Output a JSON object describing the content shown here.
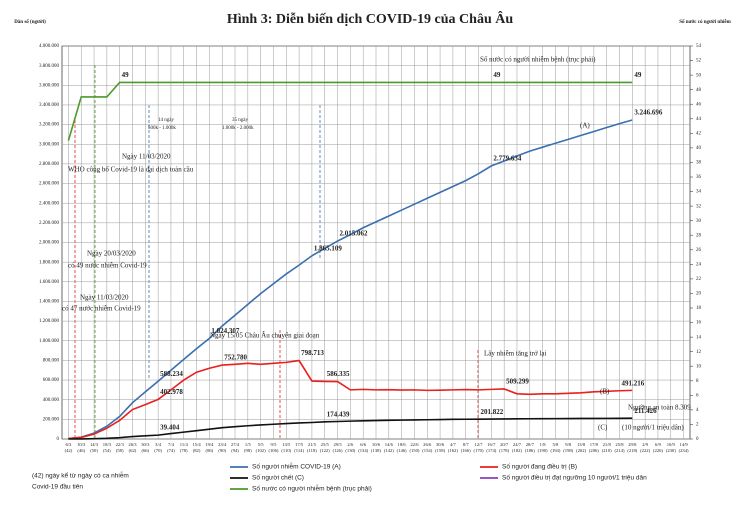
{
  "chart_data": {
    "type": "line",
    "title": "Hình 3: Diễn biến dịch COVID-19 của Châu Âu",
    "y_label": "Dân số (người)",
    "y2_label": "Số nước có người nhiễm",
    "categories": [
      "6/3",
      "10/3",
      "14/3",
      "18/3",
      "22/3",
      "26/3",
      "30/3",
      "3/4",
      "7/4",
      "11/4",
      "15/4",
      "19/4",
      "23/4",
      "27/4",
      "1/5",
      "5/5",
      "9/5",
      "13/5",
      "17/5",
      "21/5",
      "25/5",
      "29/5",
      "2/6",
      "6/6",
      "10/6",
      "14/6",
      "18/6",
      "22/6",
      "26/6",
      "30/6",
      "4/7",
      "8/7",
      "12/7",
      "16/7",
      "20/7",
      "24/7",
      "28/7",
      "1/8",
      "5/8",
      "9/8",
      "13/8",
      "17/8",
      "21/8",
      "25/8",
      "29/8",
      "2/9",
      "6/9",
      "10/9",
      "14/9"
    ],
    "category_days": [
      "(42)",
      "(46)",
      "(50)",
      "(54)",
      "(58)",
      "(62)",
      "(66)",
      "(70)",
      "(74)",
      "(78)",
      "(82)",
      "(86)",
      "(90)",
      "(94)",
      "(98)",
      "(102)",
      "(106)",
      "(110)",
      "(114)",
      "(118)",
      "(122)",
      "(126)",
      "(130)",
      "(134)",
      "(138)",
      "(142)",
      "(146)",
      "(150)",
      "(154)",
      "(158)",
      "(162)",
      "(166)",
      "(170)",
      "(174)",
      "(178)",
      "(182)",
      "(186)",
      "(190)",
      "(194)",
      "(198)",
      "(202)",
      "(206)",
      "(210)",
      "(214)",
      "(218)",
      "(222)",
      "(226)",
      "(230)",
      "(234)"
    ],
    "ylim": [
      0,
      4000000
    ],
    "yticks": [
      0,
      {
        "value": 200000,
        "label": "200.000"
      },
      {
        "value": 400000,
        "label": "400.000"
      },
      {
        "value": 600000,
        "label": "600.000"
      },
      {
        "value": 800000,
        "label": "800.000"
      },
      {
        "value": 1000000,
        "label": "1.000.000"
      },
      {
        "value": 1200000,
        "label": "1.200.000"
      },
      {
        "value": 1400000,
        "label": "1.400.000"
      },
      {
        "value": 1600000,
        "label": "1.600.000"
      },
      {
        "value": 1800000,
        "label": "1.800.000"
      },
      {
        "value": 2000000,
        "label": "2.000.000"
      },
      {
        "value": 2200000,
        "label": "2.200.000"
      },
      {
        "value": 2400000,
        "label": "2.400.000"
      },
      {
        "value": 2600000,
        "label": "2.600.000"
      },
      {
        "value": 2800000,
        "label": "2.800.000"
      },
      {
        "value": 3000000,
        "label": "3.000.000"
      },
      {
        "value": 3200000,
        "label": "3.200.000"
      },
      {
        "value": 3400000,
        "label": "3.400.000"
      },
      {
        "value": 3600000,
        "label": "3.600.000"
      },
      {
        "value": 3800000,
        "label": "3.800.000"
      },
      {
        "value": 4000000,
        "label": "4.000.000"
      }
    ],
    "y2lim": [
      0,
      54
    ],
    "y2ticks": [
      0,
      2,
      4,
      6,
      8,
      10,
      12,
      14,
      16,
      18,
      20,
      22,
      24,
      26,
      28,
      30,
      32,
      34,
      36,
      38,
      40,
      42,
      44,
      46,
      48,
      50,
      52,
      54
    ],
    "grid": true,
    "series": [
      {
        "name": "Số người nhiễm COVID-19 (A)",
        "color": "#3a6fb0",
        "values": [
          5000,
          18805,
          60000,
          130000,
          230000,
          370000,
          480000,
          588234,
          700000,
          810000,
          920000,
          1024307,
          1150000,
          1260000,
          1370000,
          1480000,
          1580000,
          1680000,
          1770000,
          1865109,
          1940000,
          2015062,
          2080000,
          2150000,
          2210000,
          2270000,
          2330000,
          2390000,
          2450000,
          2510000,
          2570000,
          2630000,
          2700000,
          2779634,
          2830000,
          2880000,
          2930000,
          2970000,
          3010000,
          3050000,
          3090000,
          3130000,
          3170000,
          3210000,
          3246696,
          null,
          null,
          null,
          null
        ],
        "value_labels": [
          null,
          null,
          null,
          null,
          null,
          null,
          null,
          "588.234",
          null,
          null,
          null,
          "1.024.307",
          null,
          null,
          null,
          null,
          null,
          null,
          null,
          "1.865.109",
          null,
          "2.015.062",
          null,
          null,
          null,
          null,
          null,
          null,
          null,
          null,
          null,
          null,
          null,
          "2.779.634",
          null,
          null,
          null,
          null,
          null,
          null,
          null,
          null,
          null,
          null,
          "3.246.696",
          null,
          null,
          null,
          null
        ]
      },
      {
        "name": "Số người đang điều trị (B)",
        "color": "#e8201e",
        "values": [
          4000,
          16000,
          50000,
          110000,
          190000,
          300000,
          350000,
          402978,
          500000,
          600000,
          680000,
          720000,
          752780,
          760000,
          770000,
          760000,
          770000,
          780000,
          798713,
          590000,
          586335,
          585000,
          500000,
          505000,
          500000,
          502000,
          498000,
          500000,
          495000,
          497000,
          500000,
          503000,
          500000,
          505000,
          509299,
          460000,
          455000,
          460000,
          460000,
          465000,
          470000,
          480000,
          485000,
          491216,
          495000,
          null,
          null,
          null,
          null
        ],
        "value_labels": [
          null,
          null,
          null,
          null,
          null,
          null,
          null,
          "402.978",
          null,
          null,
          null,
          null,
          "752.780",
          null,
          null,
          null,
          null,
          null,
          "798.713",
          null,
          "586.335",
          null,
          null,
          null,
          null,
          null,
          null,
          null,
          null,
          null,
          null,
          null,
          null,
          null,
          "509.299",
          null,
          null,
          null,
          null,
          null,
          null,
          null,
          null,
          "491.216",
          null,
          null,
          null,
          null,
          null
        ]
      },
      {
        "name": "Số người chết (C)",
        "color": "#111111",
        "values": [
          100,
          700,
          3000,
          7000,
          14000,
          25000,
          32000,
          39404,
          55000,
          70000,
          85000,
          100000,
          115000,
          125000,
          135000,
          143000,
          150000,
          157000,
          163000,
          168000,
          174439,
          178000,
          182000,
          185000,
          188000,
          190000,
          192000,
          194000,
          196000,
          198000,
          200000,
          201000,
          201822,
          203000,
          204000,
          205000,
          206000,
          207000,
          207500,
          208000,
          209000,
          209500,
          210000,
          211000,
          211426,
          null,
          null,
          null,
          null
        ],
        "value_labels": [
          null,
          null,
          null,
          null,
          null,
          null,
          null,
          "39.404",
          null,
          null,
          null,
          null,
          null,
          null,
          null,
          null,
          null,
          null,
          null,
          null,
          "174.439",
          null,
          null,
          null,
          null,
          null,
          null,
          null,
          null,
          null,
          null,
          null,
          "201.822",
          null,
          null,
          null,
          null,
          null,
          null,
          null,
          null,
          null,
          null,
          null,
          "211.426",
          null,
          null,
          null,
          null
        ]
      },
      {
        "name": "Số người điều trị đạt ngưỡng 10 người/1 triệu dân",
        "color": "#8a3fb8",
        "values": [
          null,
          null,
          null,
          null,
          null,
          null,
          null,
          null,
          null,
          null,
          null,
          null,
          null,
          null,
          null,
          null,
          null,
          null,
          null,
          null,
          null,
          null,
          null,
          null,
          null,
          null,
          null,
          null,
          null,
          null,
          null,
          null,
          null,
          null,
          null,
          null,
          null,
          null,
          null,
          null,
          null,
          null,
          null,
          null,
          null,
          null,
          null,
          null,
          null
        ]
      },
      {
        "name": "Số nước có người nhiễm bệnh (trục phải)",
        "color": "#4c9a2a",
        "axis": "y2",
        "values": [
          41,
          47,
          47,
          47,
          49,
          49,
          49,
          49,
          49,
          49,
          49,
          49,
          49,
          49,
          49,
          49,
          49,
          49,
          49,
          49,
          49,
          49,
          49,
          49,
          49,
          49,
          49,
          49,
          49,
          49,
          49,
          49,
          49,
          49,
          49,
          49,
          49,
          49,
          49,
          49,
          49,
          49,
          49,
          49,
          49,
          null,
          null,
          null,
          null
        ],
        "value_labels": [
          null,
          null,
          null,
          null,
          "49",
          null,
          null,
          null,
          null,
          null,
          null,
          null,
          null,
          null,
          null,
          null,
          null,
          null,
          null,
          null,
          null,
          null,
          null,
          null,
          null,
          null,
          null,
          null,
          null,
          null,
          null,
          null,
          null,
          "49",
          null,
          null,
          null,
          null,
          null,
          null,
          null,
          null,
          null,
          null,
          "49",
          null,
          null,
          null,
          null
        ]
      }
    ],
    "annotations": [
      "Ngày 11/03/2020",
      "WHO công bố Covid-19 là đại dịch toàn cầu",
      "Ngày 20/03/2020",
      "có 49 nước nhiễm Covid-19",
      "Ngày 11/03/2020",
      "có 47 nước nhiễm Covid-19",
      "14 ngày",
      "500k - 1.000k",
      "35 ngày",
      "1.000k - 2.000k",
      "Ngày 15/05 Châu Âu chuyển giai đoạn",
      "Lây nhiễm tăng trở lại",
      "Số nước có người nhiễm bệnh (trục phải)",
      "(A)",
      "(B)",
      "(C)",
      "Ngưỡng an toàn 8.309",
      "(10 người/1 triệu dân)"
    ],
    "footnote": [
      "(42) ngày kể từ ngày có ca nhiễm",
      "Covid-19 đầu tiên"
    ]
  }
}
